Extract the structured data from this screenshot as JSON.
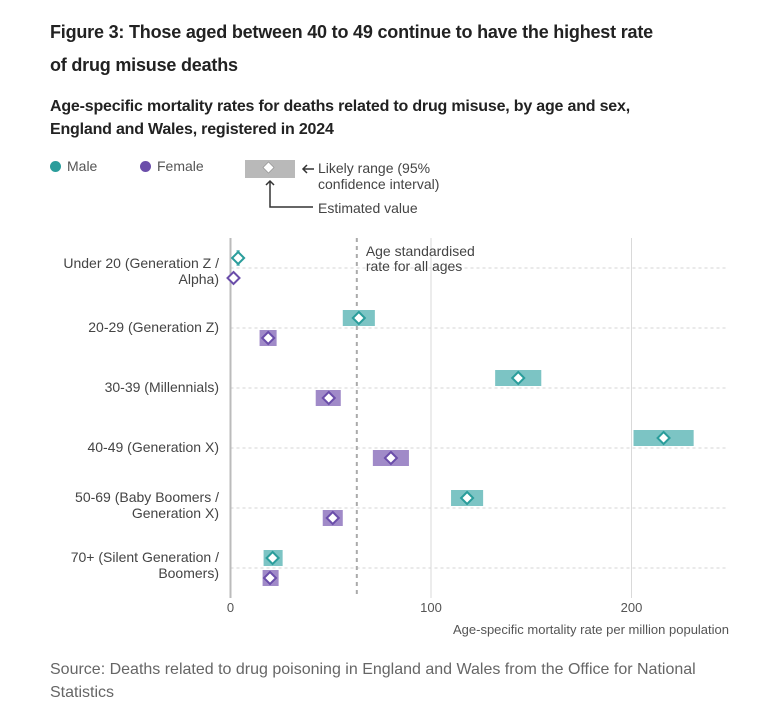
{
  "title": "Figure 3: Those aged between 40 to 49 continue to have the highest rate of drug misuse deaths",
  "subtitle": "Age-specific mortality rates for deaths related to drug misuse, by age and sex, England and Wales, registered in 2024",
  "legend": {
    "male_label": "Male",
    "female_label": "Female",
    "ci_label": "Likely range (95% confidence interval)",
    "ci_label_line1": "Likely range (95%",
    "ci_label_line2": "confidence interval)",
    "estimate_label": "Estimated value"
  },
  "colors": {
    "male": "#2a9d9b",
    "male_range": "#7cc4c4",
    "female": "#6b4eaa",
    "female_range": "#a08ac8",
    "reference_line": "#aaaaaa"
  },
  "source": "Source: Deaths related to drug poisoning in England and Wales from the Office for National Statistics",
  "chart_data": {
    "type": "scatter",
    "title": "Age-specific mortality rates for deaths related to drug misuse, by age and sex, England and Wales, registered in 2024",
    "xlabel": "Age-specific mortality rate per million population",
    "ylabel": "",
    "xlim": [
      0,
      250
    ],
    "xticks": [
      0,
      100,
      200
    ],
    "grid": true,
    "legend_position": "top-left",
    "categories": [
      [
        "Under 20 (Generation Z /",
        "Alpha)"
      ],
      [
        "20-29 (Generation Z)"
      ],
      [
        "30-39 (Millennials)"
      ],
      [
        "40-49 (Generation X)"
      ],
      [
        "50-69 (Baby Boomers /",
        "Generation X)"
      ],
      [
        "70+ (Silent Generation /",
        "Boomers)"
      ]
    ],
    "series": [
      {
        "name": "Male",
        "values": [
          3.8,
          64,
          143.5,
          216,
          118,
          21
        ],
        "lower": [
          3.0,
          56,
          132,
          201,
          110,
          16.5
        ],
        "upper": [
          4.6,
          72,
          155,
          231,
          126,
          26
        ]
      },
      {
        "name": "Female",
        "values": [
          1.5,
          18.8,
          49,
          80,
          51,
          19.7
        ],
        "lower": [
          1.0,
          14.5,
          42.5,
          71,
          46,
          16
        ],
        "upper": [
          2.0,
          23,
          55,
          89,
          56,
          24
        ]
      }
    ],
    "reference_line": {
      "value": 63,
      "label_line1": "Age standardised",
      "label_line2": "rate for all ages",
      "label": "Age standardised rate for all ages"
    }
  }
}
